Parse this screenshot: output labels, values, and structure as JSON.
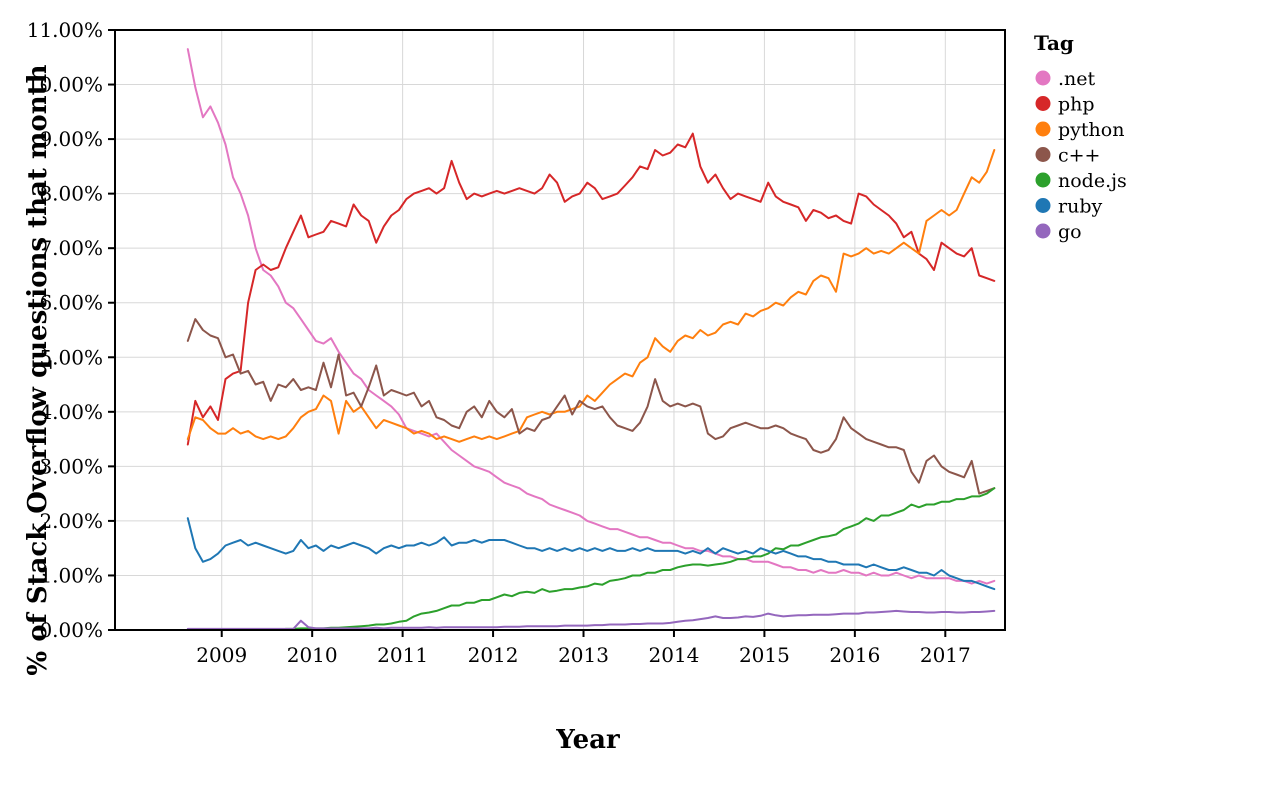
{
  "chart_data": {
    "type": "line",
    "title": "",
    "xlabel": "Year",
    "ylabel": "% of Stack Overflow questions that month",
    "legend_title": "Tag",
    "legend_position": "right",
    "grid": true,
    "xlim": [
      2007.82,
      2017.66
    ],
    "ylim": [
      0,
      11
    ],
    "x_start": 2008.625,
    "x_step": 0.0833333,
    "x_ticks": [
      {
        "value": 2009,
        "label": "2009"
      },
      {
        "value": 2010,
        "label": "2010"
      },
      {
        "value": 2011,
        "label": "2011"
      },
      {
        "value": 2012,
        "label": "2012"
      },
      {
        "value": 2013,
        "label": "2013"
      },
      {
        "value": 2014,
        "label": "2014"
      },
      {
        "value": 2015,
        "label": "2015"
      },
      {
        "value": 2016,
        "label": "2016"
      },
      {
        "value": 2017,
        "label": "2017"
      }
    ],
    "y_ticks": [
      {
        "value": 0,
        "label": "0.00%"
      },
      {
        "value": 1,
        "label": "1.00%"
      },
      {
        "value": 2,
        "label": "2.00%"
      },
      {
        "value": 3,
        "label": "3.00%"
      },
      {
        "value": 4,
        "label": "4.00%"
      },
      {
        "value": 5,
        "label": "5.00%"
      },
      {
        "value": 6,
        "label": "6.00%"
      },
      {
        "value": 7,
        "label": "7.00%"
      },
      {
        "value": 8,
        "label": "8.00%"
      },
      {
        "value": 9,
        "label": "9.00%"
      },
      {
        "value": 10,
        "label": "10.00%"
      },
      {
        "value": 11,
        "label": "11.00%"
      }
    ],
    "colors": {
      "grid": "#d8d8d8",
      "axis": "#000000",
      "background": "#ffffff"
    },
    "series": [
      {
        "name": ".net",
        "color": "#e377c2",
        "values": [
          10.65,
          9.95,
          9.4,
          9.6,
          9.3,
          8.9,
          8.3,
          8.0,
          7.6,
          7.0,
          6.6,
          6.5,
          6.3,
          6.0,
          5.9,
          5.7,
          5.5,
          5.3,
          5.25,
          5.35,
          5.1,
          4.9,
          4.7,
          4.6,
          4.4,
          4.3,
          4.2,
          4.1,
          3.95,
          3.7,
          3.65,
          3.6,
          3.55,
          3.6,
          3.45,
          3.3,
          3.2,
          3.1,
          3.0,
          2.95,
          2.9,
          2.8,
          2.7,
          2.65,
          2.6,
          2.5,
          2.45,
          2.4,
          2.3,
          2.25,
          2.2,
          2.15,
          2.1,
          2.0,
          1.95,
          1.9,
          1.85,
          1.85,
          1.8,
          1.75,
          1.7,
          1.7,
          1.65,
          1.6,
          1.6,
          1.55,
          1.5,
          1.5,
          1.45,
          1.45,
          1.4,
          1.35,
          1.35,
          1.3,
          1.3,
          1.25,
          1.25,
          1.25,
          1.2,
          1.15,
          1.15,
          1.1,
          1.1,
          1.05,
          1.1,
          1.05,
          1.05,
          1.1,
          1.05,
          1.05,
          1.0,
          1.05,
          1.0,
          1.0,
          1.05,
          1.0,
          0.95,
          1.0,
          0.95,
          0.95,
          0.95,
          0.95,
          0.9,
          0.9,
          0.85,
          0.9,
          0.85,
          0.9
        ]
      },
      {
        "name": "php",
        "color": "#d62728",
        "values": [
          3.4,
          4.2,
          3.9,
          4.1,
          3.85,
          4.6,
          4.7,
          4.75,
          6.0,
          6.6,
          6.7,
          6.6,
          6.65,
          7.0,
          7.3,
          7.6,
          7.2,
          7.25,
          7.3,
          7.5,
          7.45,
          7.4,
          7.8,
          7.6,
          7.5,
          7.1,
          7.4,
          7.6,
          7.7,
          7.9,
          8.0,
          8.05,
          8.1,
          8.0,
          8.1,
          8.6,
          8.2,
          7.9,
          8.0,
          7.95,
          8.0,
          8.05,
          8.0,
          8.05,
          8.1,
          8.05,
          8.0,
          8.1,
          8.35,
          8.2,
          7.85,
          7.95,
          8.0,
          8.2,
          8.1,
          7.9,
          7.95,
          8.0,
          8.15,
          8.3,
          8.5,
          8.45,
          8.8,
          8.7,
          8.75,
          8.9,
          8.85,
          9.1,
          8.5,
          8.2,
          8.35,
          8.1,
          7.9,
          8.0,
          7.95,
          7.9,
          7.85,
          8.2,
          7.95,
          7.85,
          7.8,
          7.75,
          7.5,
          7.7,
          7.65,
          7.55,
          7.6,
          7.5,
          7.45,
          8.0,
          7.95,
          7.8,
          7.7,
          7.6,
          7.45,
          7.2,
          7.3,
          6.9,
          6.8,
          6.6,
          7.1,
          7.0,
          6.9,
          6.85,
          7.0,
          6.5,
          6.45,
          6.4
        ]
      },
      {
        "name": "python",
        "color": "#ff7f0e",
        "values": [
          3.5,
          3.9,
          3.85,
          3.7,
          3.6,
          3.6,
          3.7,
          3.6,
          3.65,
          3.55,
          3.5,
          3.55,
          3.5,
          3.55,
          3.7,
          3.9,
          4.0,
          4.05,
          4.3,
          4.2,
          3.6,
          4.2,
          4.0,
          4.1,
          3.9,
          3.7,
          3.85,
          3.8,
          3.75,
          3.7,
          3.6,
          3.65,
          3.6,
          3.5,
          3.55,
          3.5,
          3.45,
          3.5,
          3.55,
          3.5,
          3.55,
          3.5,
          3.55,
          3.6,
          3.65,
          3.9,
          3.95,
          4.0,
          3.95,
          4.0,
          4.0,
          4.05,
          4.1,
          4.3,
          4.2,
          4.35,
          4.5,
          4.6,
          4.7,
          4.65,
          4.9,
          5.0,
          5.35,
          5.2,
          5.1,
          5.3,
          5.4,
          5.35,
          5.5,
          5.4,
          5.45,
          5.6,
          5.65,
          5.6,
          5.8,
          5.75,
          5.85,
          5.9,
          6.0,
          5.95,
          6.1,
          6.2,
          6.15,
          6.4,
          6.5,
          6.45,
          6.2,
          6.9,
          6.85,
          6.9,
          7.0,
          6.9,
          6.95,
          6.9,
          7.0,
          7.1,
          7.0,
          6.9,
          7.5,
          7.6,
          7.7,
          7.6,
          7.7,
          8.0,
          8.3,
          8.2,
          8.4,
          8.8
        ]
      },
      {
        "name": "c++",
        "color": "#8c564b",
        "values": [
          5.3,
          5.7,
          5.5,
          5.4,
          5.35,
          5.0,
          5.05,
          4.7,
          4.75,
          4.5,
          4.55,
          4.2,
          4.5,
          4.45,
          4.6,
          4.4,
          4.45,
          4.4,
          4.9,
          4.45,
          5.05,
          4.3,
          4.35,
          4.1,
          4.45,
          4.85,
          4.3,
          4.4,
          4.35,
          4.3,
          4.35,
          4.1,
          4.2,
          3.9,
          3.85,
          3.75,
          3.7,
          4.0,
          4.1,
          3.9,
          4.2,
          4.0,
          3.9,
          4.05,
          3.6,
          3.7,
          3.65,
          3.85,
          3.9,
          4.1,
          4.3,
          3.95,
          4.2,
          4.1,
          4.05,
          4.1,
          3.9,
          3.75,
          3.7,
          3.65,
          3.8,
          4.1,
          4.6,
          4.2,
          4.1,
          4.15,
          4.1,
          4.15,
          4.1,
          3.6,
          3.5,
          3.55,
          3.7,
          3.75,
          3.8,
          3.75,
          3.7,
          3.7,
          3.75,
          3.7,
          3.6,
          3.55,
          3.5,
          3.3,
          3.25,
          3.3,
          3.5,
          3.9,
          3.7,
          3.6,
          3.5,
          3.45,
          3.4,
          3.35,
          3.35,
          3.3,
          2.9,
          2.7,
          3.1,
          3.2,
          3.0,
          2.9,
          2.85,
          2.8,
          3.1,
          2.5,
          2.55,
          2.6
        ]
      },
      {
        "name": "node.js",
        "color": "#2ca02c",
        "values": [
          0,
          0,
          0,
          0,
          0,
          0,
          0,
          0,
          0,
          0,
          0,
          0,
          0,
          0.02,
          0.02,
          0.03,
          0.03,
          0.03,
          0.03,
          0.04,
          0.04,
          0.05,
          0.06,
          0.07,
          0.08,
          0.1,
          0.1,
          0.12,
          0.15,
          0.17,
          0.25,
          0.3,
          0.32,
          0.35,
          0.4,
          0.45,
          0.45,
          0.5,
          0.5,
          0.55,
          0.55,
          0.6,
          0.65,
          0.62,
          0.68,
          0.7,
          0.68,
          0.75,
          0.7,
          0.72,
          0.75,
          0.75,
          0.78,
          0.8,
          0.85,
          0.83,
          0.9,
          0.92,
          0.95,
          1.0,
          1.0,
          1.05,
          1.05,
          1.1,
          1.1,
          1.15,
          1.18,
          1.2,
          1.2,
          1.18,
          1.2,
          1.22,
          1.25,
          1.3,
          1.3,
          1.35,
          1.35,
          1.4,
          1.5,
          1.48,
          1.55,
          1.55,
          1.6,
          1.65,
          1.7,
          1.72,
          1.75,
          1.85,
          1.9,
          1.95,
          2.05,
          2.0,
          2.1,
          2.1,
          2.15,
          2.2,
          2.3,
          2.25,
          2.3,
          2.3,
          2.35,
          2.35,
          2.4,
          2.4,
          2.45,
          2.45,
          2.5,
          2.6
        ]
      },
      {
        "name": "ruby",
        "color": "#1f77b4",
        "values": [
          2.05,
          1.5,
          1.25,
          1.3,
          1.4,
          1.55,
          1.6,
          1.65,
          1.55,
          1.6,
          1.55,
          1.5,
          1.45,
          1.4,
          1.45,
          1.65,
          1.5,
          1.55,
          1.45,
          1.55,
          1.5,
          1.55,
          1.6,
          1.55,
          1.5,
          1.4,
          1.5,
          1.55,
          1.5,
          1.55,
          1.55,
          1.6,
          1.55,
          1.6,
          1.7,
          1.55,
          1.6,
          1.6,
          1.65,
          1.6,
          1.65,
          1.65,
          1.65,
          1.6,
          1.55,
          1.5,
          1.5,
          1.45,
          1.5,
          1.45,
          1.5,
          1.45,
          1.5,
          1.45,
          1.5,
          1.45,
          1.5,
          1.45,
          1.45,
          1.5,
          1.45,
          1.5,
          1.45,
          1.45,
          1.45,
          1.45,
          1.4,
          1.45,
          1.4,
          1.5,
          1.4,
          1.5,
          1.45,
          1.4,
          1.45,
          1.4,
          1.5,
          1.45,
          1.4,
          1.45,
          1.4,
          1.35,
          1.35,
          1.3,
          1.3,
          1.25,
          1.25,
          1.2,
          1.2,
          1.2,
          1.15,
          1.2,
          1.15,
          1.1,
          1.1,
          1.15,
          1.1,
          1.05,
          1.05,
          1.0,
          1.1,
          1.0,
          0.95,
          0.9,
          0.9,
          0.85,
          0.8,
          0.75
        ]
      },
      {
        "name": "go",
        "color": "#9467bd",
        "values": [
          0.02,
          0.02,
          0.02,
          0.02,
          0.02,
          0.02,
          0.02,
          0.02,
          0.02,
          0.02,
          0.02,
          0.02,
          0.02,
          0.02,
          0.02,
          0.17,
          0.05,
          0.03,
          0.03,
          0.03,
          0.03,
          0.03,
          0.03,
          0.03,
          0.03,
          0.04,
          0.03,
          0.04,
          0.04,
          0.04,
          0.04,
          0.04,
          0.05,
          0.04,
          0.05,
          0.05,
          0.05,
          0.05,
          0.05,
          0.05,
          0.05,
          0.05,
          0.06,
          0.06,
          0.06,
          0.07,
          0.07,
          0.07,
          0.07,
          0.07,
          0.08,
          0.08,
          0.08,
          0.08,
          0.09,
          0.09,
          0.1,
          0.1,
          0.1,
          0.11,
          0.11,
          0.12,
          0.12,
          0.12,
          0.13,
          0.15,
          0.17,
          0.18,
          0.2,
          0.22,
          0.25,
          0.22,
          0.22,
          0.23,
          0.25,
          0.24,
          0.26,
          0.3,
          0.27,
          0.25,
          0.26,
          0.27,
          0.27,
          0.28,
          0.28,
          0.28,
          0.29,
          0.3,
          0.3,
          0.3,
          0.32,
          0.32,
          0.33,
          0.34,
          0.35,
          0.34,
          0.33,
          0.33,
          0.32,
          0.32,
          0.33,
          0.33,
          0.32,
          0.32,
          0.33,
          0.33,
          0.34,
          0.35
        ]
      }
    ]
  }
}
